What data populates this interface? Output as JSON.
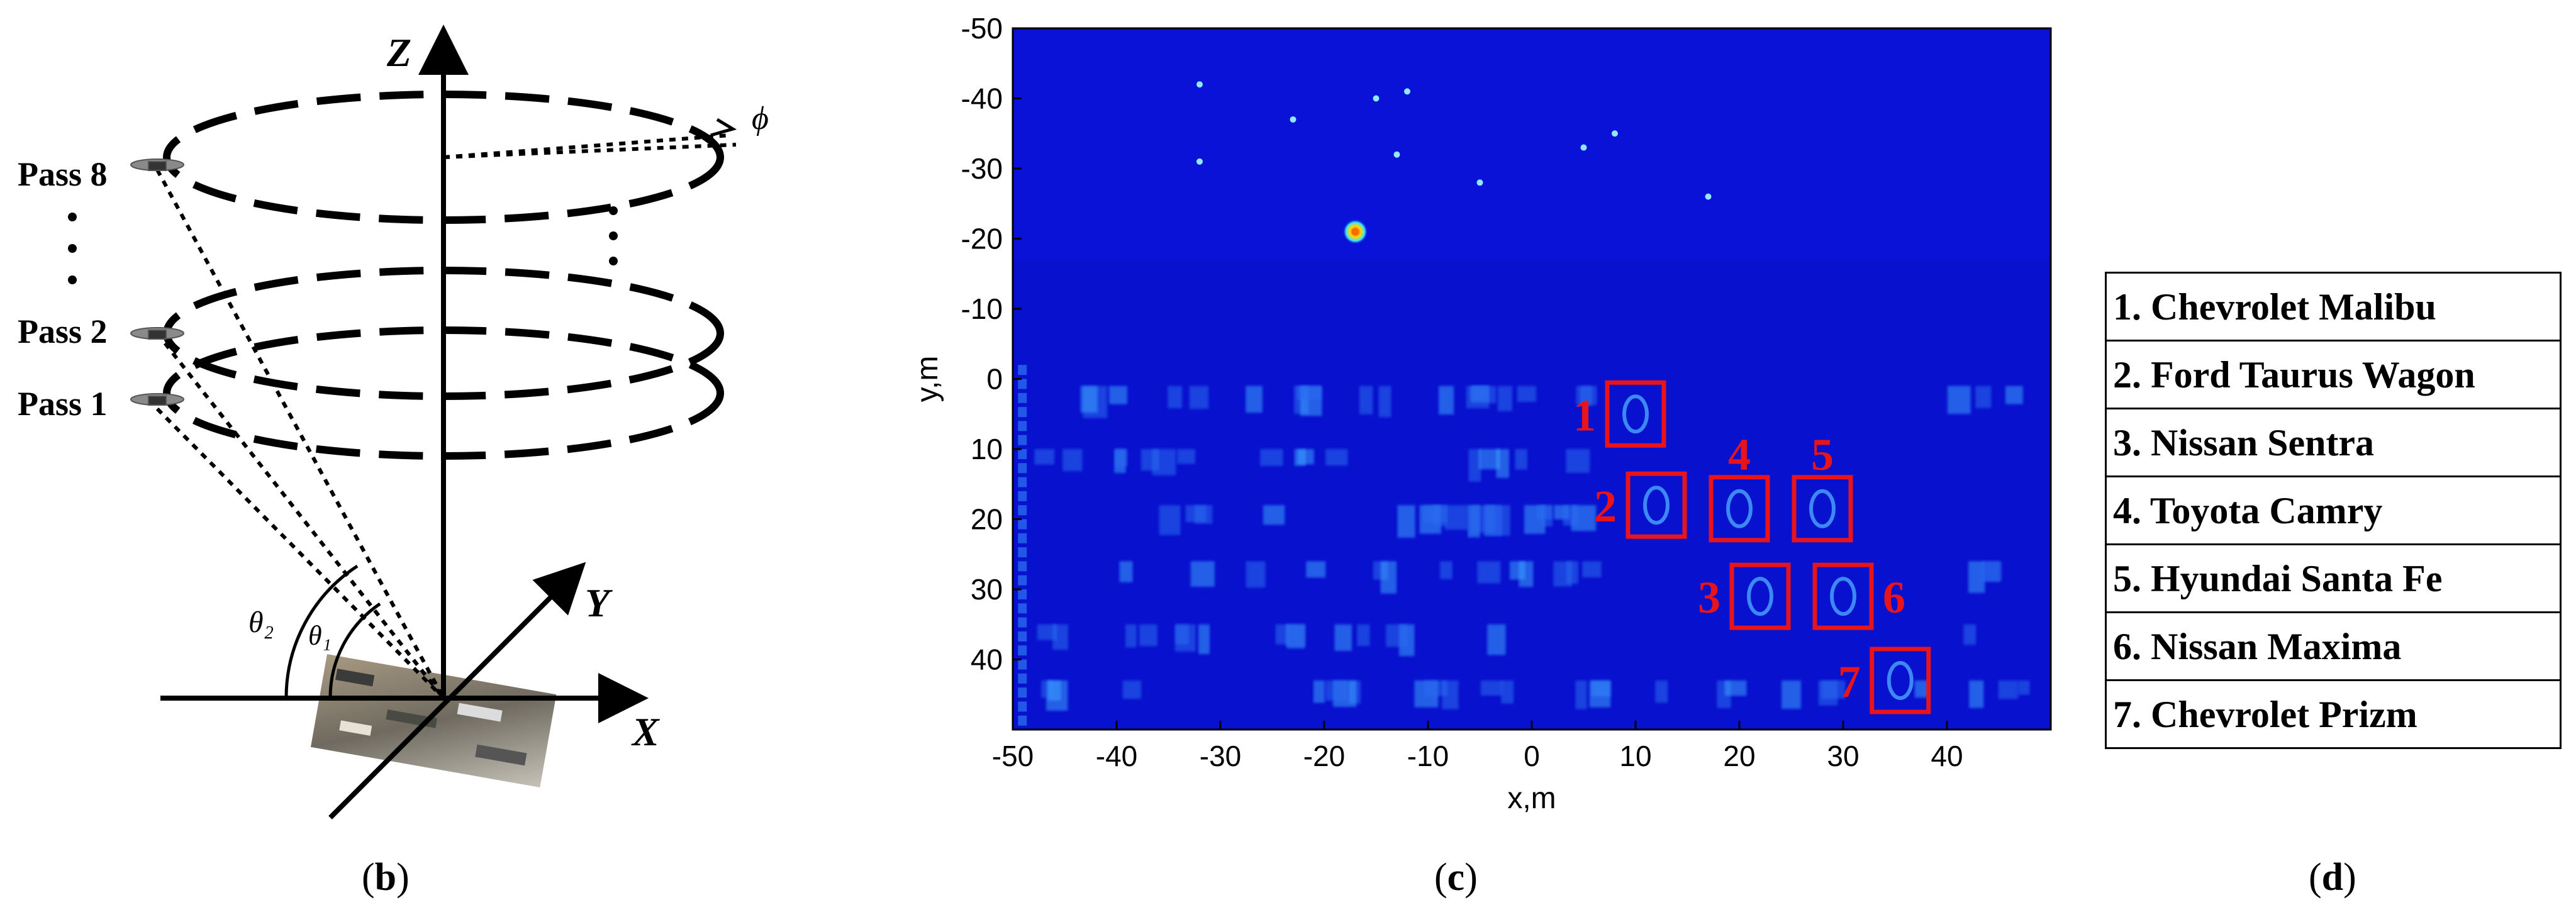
{
  "panel_b": {
    "axis_z": "Z",
    "axis_x": "X",
    "axis_y": "Y",
    "phi": "ϕ",
    "theta2": "θ₂",
    "theta1": "θ₁",
    "passes": [
      "Pass 8",
      "Pass 2",
      "Pass 1"
    ],
    "caption_open": "(",
    "caption_letter": "b",
    "caption_close": ")"
  },
  "panel_c": {
    "caption_open": "(",
    "caption_letter": "c",
    "caption_close": ")"
  },
  "panel_d": {
    "vehicles": [
      "1. Chevrolet Malibu",
      "2. Ford Taurus Wagon",
      "3. Nissan Sentra",
      "4. Toyota Camry",
      "5. Hyundai Santa Fe",
      "6. Nissan Maxima",
      "7. Chevrolet Prizm"
    ],
    "caption_open": "(",
    "caption_letter": "d",
    "caption_close": ")"
  },
  "colors": {
    "sar_background": "#0b12d8",
    "target_box": "#e8141a",
    "bright_scatter": "#8fe8ff",
    "hot_spot": "#ff6a00"
  },
  "chart_data": {
    "type": "heatmap",
    "title": "",
    "xlabel": "x,m",
    "ylabel": "y,m",
    "xlim": [
      -50,
      50
    ],
    "ylim": [
      -50,
      50
    ],
    "x_ticks": [
      -50,
      -40,
      -30,
      -20,
      -10,
      0,
      10,
      20,
      30,
      40
    ],
    "y_ticks": [
      -50,
      -40,
      -30,
      -20,
      -10,
      0,
      10,
      20,
      30,
      40
    ],
    "y_axis_inverted": true,
    "annotations": [
      {
        "label": "1",
        "x": 10.0,
        "y": 5.0,
        "label_side": "left"
      },
      {
        "label": "2",
        "x": 12.0,
        "y": 18.0,
        "label_side": "left"
      },
      {
        "label": "3",
        "x": 22.0,
        "y": 31.0,
        "label_side": "left"
      },
      {
        "label": "4",
        "x": 20.0,
        "y": 18.5,
        "label_side": "top"
      },
      {
        "label": "5",
        "x": 28.0,
        "y": 18.5,
        "label_side": "top"
      },
      {
        "label": "6",
        "x": 30.0,
        "y": 31.0,
        "label_side": "right"
      },
      {
        "label": "7",
        "x": 35.5,
        "y": 43.0,
        "label_side": "left"
      }
    ]
  }
}
